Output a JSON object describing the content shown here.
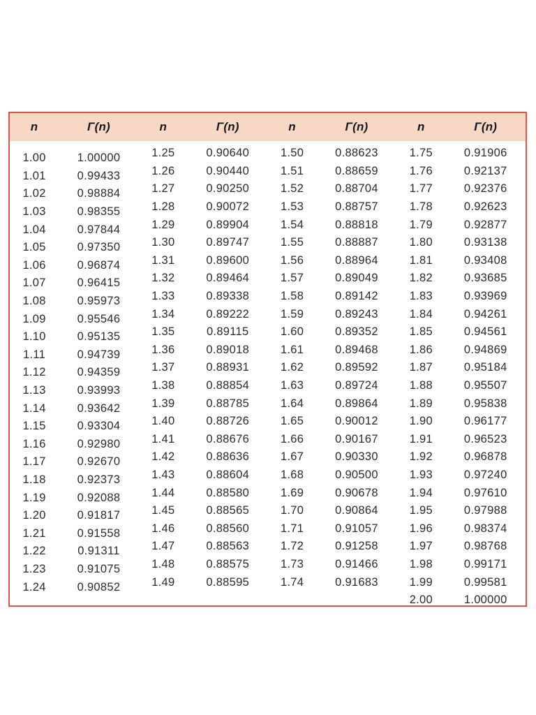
{
  "colors": {
    "border": "#e0524f",
    "header_band": "#f8d7c5",
    "text": "#2b2b2b",
    "header_text": "#16161d"
  },
  "table": {
    "header": {
      "n_label": "n",
      "gamma_label": "Γ(n)"
    },
    "columns": [
      {
        "rows": [
          {
            "n": "1.00",
            "g": "1.00000"
          },
          {
            "n": "1.01",
            "g": "0.99433"
          },
          {
            "n": "1.02",
            "g": "0.98884"
          },
          {
            "n": "1.03",
            "g": "0.98355"
          },
          {
            "n": "1.04",
            "g": "0.97844"
          },
          {
            "n": "1.05",
            "g": "0.97350"
          },
          {
            "n": "1.06",
            "g": "0.96874"
          },
          {
            "n": "1.07",
            "g": "0.96415"
          },
          {
            "n": "1.08",
            "g": "0.95973"
          },
          {
            "n": "1.09",
            "g": "0.95546"
          },
          {
            "n": "1.10",
            "g": "0.95135"
          },
          {
            "n": "1.11",
            "g": "0.94739"
          },
          {
            "n": "1.12",
            "g": "0.94359"
          },
          {
            "n": "1.13",
            "g": "0.93993"
          },
          {
            "n": "1.14",
            "g": "0.93642"
          },
          {
            "n": "1.15",
            "g": "0.93304"
          },
          {
            "n": "1.16",
            "g": "0.92980"
          },
          {
            "n": "1.17",
            "g": "0.92670"
          },
          {
            "n": "1.18",
            "g": "0.92373"
          },
          {
            "n": "1.19",
            "g": "0.92088"
          },
          {
            "n": "1.20",
            "g": "0.91817"
          },
          {
            "n": "1.21",
            "g": "0.91558"
          },
          {
            "n": "1.22",
            "g": "0.91311"
          },
          {
            "n": "1.23",
            "g": "0.91075"
          },
          {
            "n": "1.24",
            "g": "0.90852"
          }
        ]
      },
      {
        "rows": [
          {
            "n": "1.25",
            "g": "0.90640"
          },
          {
            "n": "1.26",
            "g": "0.90440"
          },
          {
            "n": "1.27",
            "g": "0.90250"
          },
          {
            "n": "1.28",
            "g": "0.90072"
          },
          {
            "n": "1.29",
            "g": "0.89904"
          },
          {
            "n": "1.30",
            "g": "0.89747"
          },
          {
            "n": "1.31",
            "g": "0.89600"
          },
          {
            "n": "1.32",
            "g": "0.89464"
          },
          {
            "n": "1.33",
            "g": "0.89338"
          },
          {
            "n": "1.34",
            "g": "0.89222"
          },
          {
            "n": "1.35",
            "g": "0.89115"
          },
          {
            "n": "1.36",
            "g": "0.89018"
          },
          {
            "n": "1.37",
            "g": "0.88931"
          },
          {
            "n": "1.38",
            "g": "0.88854"
          },
          {
            "n": "1.39",
            "g": "0.88785"
          },
          {
            "n": "1.40",
            "g": "0.88726"
          },
          {
            "n": "1.41",
            "g": "0.88676"
          },
          {
            "n": "1.42",
            "g": "0.88636"
          },
          {
            "n": "1.43",
            "g": "0.88604"
          },
          {
            "n": "1.44",
            "g": "0.88580"
          },
          {
            "n": "1.45",
            "g": "0.88565"
          },
          {
            "n": "1.46",
            "g": "0.88560"
          },
          {
            "n": "1.47",
            "g": "0.88563"
          },
          {
            "n": "1.48",
            "g": "0.88575"
          },
          {
            "n": "1.49",
            "g": "0.88595"
          }
        ]
      },
      {
        "rows": [
          {
            "n": "1.50",
            "g": "0.88623"
          },
          {
            "n": "1.51",
            "g": "0.88659"
          },
          {
            "n": "1.52",
            "g": "0.88704"
          },
          {
            "n": "1.53",
            "g": "0.88757"
          },
          {
            "n": "1.54",
            "g": "0.88818"
          },
          {
            "n": "1.55",
            "g": "0.88887"
          },
          {
            "n": "1.56",
            "g": "0.88964"
          },
          {
            "n": "1.57",
            "g": "0.89049"
          },
          {
            "n": "1.58",
            "g": "0.89142"
          },
          {
            "n": "1.59",
            "g": "0.89243"
          },
          {
            "n": "1.60",
            "g": "0.89352"
          },
          {
            "n": "1.61",
            "g": "0.89468"
          },
          {
            "n": "1.62",
            "g": "0.89592"
          },
          {
            "n": "1.63",
            "g": "0.89724"
          },
          {
            "n": "1.64",
            "g": "0.89864"
          },
          {
            "n": "1.65",
            "g": "0.90012"
          },
          {
            "n": "1.66",
            "g": "0.90167"
          },
          {
            "n": "1.67",
            "g": "0.90330"
          },
          {
            "n": "1.68",
            "g": "0.90500"
          },
          {
            "n": "1.69",
            "g": "0.90678"
          },
          {
            "n": "1.70",
            "g": "0.90864"
          },
          {
            "n": "1.71",
            "g": "0.91057"
          },
          {
            "n": "1.72",
            "g": "0.91258"
          },
          {
            "n": "1.73",
            "g": "0.91466"
          },
          {
            "n": "1.74",
            "g": "0.91683"
          }
        ]
      },
      {
        "rows": [
          {
            "n": "1.75",
            "g": "0.91906"
          },
          {
            "n": "1.76",
            "g": "0.92137"
          },
          {
            "n": "1.77",
            "g": "0.92376"
          },
          {
            "n": "1.78",
            "g": "0.92623"
          },
          {
            "n": "1.79",
            "g": "0.92877"
          },
          {
            "n": "1.80",
            "g": "0.93138"
          },
          {
            "n": "1.81",
            "g": "0.93408"
          },
          {
            "n": "1.82",
            "g": "0.93685"
          },
          {
            "n": "1.83",
            "g": "0.93969"
          },
          {
            "n": "1.84",
            "g": "0.94261"
          },
          {
            "n": "1.85",
            "g": "0.94561"
          },
          {
            "n": "1.86",
            "g": "0.94869"
          },
          {
            "n": "1.87",
            "g": "0.95184"
          },
          {
            "n": "1.88",
            "g": "0.95507"
          },
          {
            "n": "1.89",
            "g": "0.95838"
          },
          {
            "n": "1.90",
            "g": "0.96177"
          },
          {
            "n": "1.91",
            "g": "0.96523"
          },
          {
            "n": "1.92",
            "g": "0.96878"
          },
          {
            "n": "1.93",
            "g": "0.97240"
          },
          {
            "n": "1.94",
            "g": "0.97610"
          },
          {
            "n": "1.95",
            "g": "0.97988"
          },
          {
            "n": "1.96",
            "g": "0.98374"
          },
          {
            "n": "1.97",
            "g": "0.98768"
          },
          {
            "n": "1.98",
            "g": "0.99171"
          },
          {
            "n": "1.99",
            "g": "0.99581"
          },
          {
            "n": "2.00",
            "g": "1.00000"
          }
        ]
      }
    ]
  }
}
